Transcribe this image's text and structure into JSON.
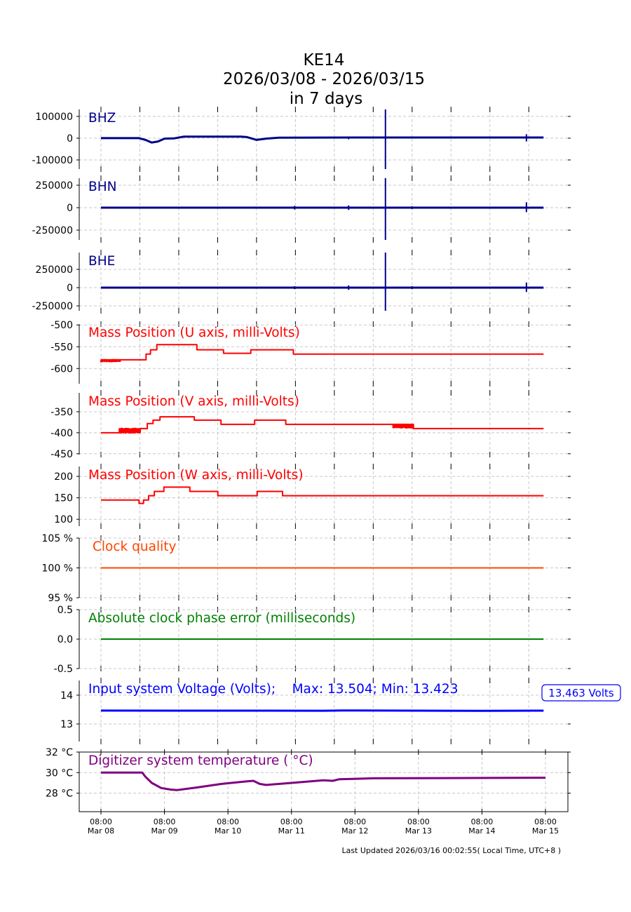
{
  "chart_data": {
    "type": "line",
    "title": [
      "KE14",
      "2026/03/08 - 2026/03/15",
      "in 7 days"
    ],
    "footer": "Last Updated 2026/03/16 00:02:55( Local Time, UTC+8 )",
    "x_unit": "days since Mar 08 08:00",
    "x_ticks": [
      {
        "t": 0,
        "time": "08:00",
        "date": "Mar 08"
      },
      {
        "t": 1,
        "time": "08:00",
        "date": "Mar 09"
      },
      {
        "t": 2,
        "time": "08:00",
        "date": "Mar 10"
      },
      {
        "t": 3,
        "time": "08:00",
        "date": "Mar 11"
      },
      {
        "t": 4,
        "time": "08:00",
        "date": "Mar 12"
      },
      {
        "t": 5,
        "time": "08:00",
        "date": "Mar 13"
      },
      {
        "t": 6,
        "time": "08:00",
        "date": "Mar 14"
      },
      {
        "t": 7,
        "time": "08:00",
        "date": "Mar 15"
      }
    ],
    "upper_grid_step_days": 0.6125,
    "panels": [
      {
        "name": "BHZ",
        "label": "BHZ",
        "color": "#00008b",
        "ylim": [
          -142000,
          132000
        ],
        "yticks": [
          {
            "v": 100000,
            "l": "100000"
          },
          {
            "v": 0,
            "l": "0"
          },
          {
            "v": -100000,
            "l": "-100000"
          }
        ],
        "series": [
          [
            0,
            0
          ],
          [
            0.6,
            0
          ],
          [
            0.7,
            -8000
          ],
          [
            0.8,
            -20000
          ],
          [
            0.9,
            -15000
          ],
          [
            1.0,
            -2000
          ],
          [
            1.15,
            -1000
          ],
          [
            1.3,
            7000
          ],
          [
            2.2,
            7000
          ],
          [
            2.3,
            5000
          ],
          [
            2.45,
            -8000
          ],
          [
            2.6,
            -2000
          ],
          [
            2.8,
            2000
          ],
          [
            4.0,
            3000
          ],
          [
            6.97,
            3000
          ]
        ],
        "spikes": [
          [
            4.48,
            -142000,
            132000
          ],
          [
            6.7,
            -15000,
            18000
          ],
          [
            3.9,
            -5000,
            5000
          ]
        ]
      },
      {
        "name": "BHN",
        "label": "BHN",
        "color": "#00008b",
        "ylim": [
          -359000,
          328000
        ],
        "yticks": [
          {
            "v": 250000,
            "l": "250000"
          },
          {
            "v": 0,
            "l": "0"
          },
          {
            "v": -250000,
            "l": "-250000"
          }
        ],
        "series": [
          [
            0,
            0
          ],
          [
            6.97,
            0
          ]
        ],
        "spikes": [
          [
            4.48,
            -359000,
            328000
          ],
          [
            6.7,
            -50000,
            60000
          ],
          [
            3.9,
            -25000,
            25000
          ],
          [
            3.05,
            -20000,
            20000
          ],
          [
            4.9,
            -15000,
            15000
          ]
        ]
      },
      {
        "name": "BHE",
        "label": "BHE",
        "color": "#00008b",
        "ylim": [
          -317000,
          480000
        ],
        "yticks": [
          {
            "v": 250000,
            "l": "250000"
          },
          {
            "v": 0,
            "l": "0"
          },
          {
            "v": -250000,
            "l": "-250000"
          }
        ],
        "series": [
          [
            0,
            0
          ],
          [
            6.97,
            0
          ]
        ],
        "spikes": [
          [
            4.48,
            -317000,
            480000
          ],
          [
            6.7,
            -60000,
            70000
          ],
          [
            3.9,
            -30000,
            30000
          ],
          [
            3.05,
            -20000,
            20000
          ],
          [
            4.9,
            -20000,
            20000
          ]
        ]
      },
      {
        "name": "mass-u",
        "label": "Mass Position (U axis, milli-Volts)",
        "color": "#ff0000",
        "ylim": [
          -635,
          -498
        ],
        "yticks": [
          {
            "v": -500,
            "l": "-500"
          },
          {
            "v": -550,
            "l": "-550"
          },
          {
            "v": -600,
            "l": "-600"
          }
        ],
        "series": [
          [
            0,
            -580
          ],
          [
            0.71,
            -580
          ],
          [
            0.71,
            -567
          ],
          [
            0.78,
            -567
          ],
          [
            0.78,
            -557
          ],
          [
            0.88,
            -557
          ],
          [
            0.88,
            -545
          ],
          [
            1.51,
            -545
          ],
          [
            1.51,
            -557
          ],
          [
            1.93,
            -557
          ],
          [
            1.93,
            -565
          ],
          [
            2.36,
            -565
          ],
          [
            2.36,
            -557
          ],
          [
            3.03,
            -557
          ],
          [
            3.03,
            -567
          ],
          [
            6.97,
            -567
          ]
        ],
        "noise": [
          [
            0,
            0.31,
            -586,
            -578
          ]
        ]
      },
      {
        "name": "mass-v",
        "label": "Mass Position (V axis, milli-Volts)",
        "color": "#ff0000",
        "ylim": [
          -452,
          -305
        ],
        "yticks": [
          {
            "v": -350,
            "l": "-350"
          },
          {
            "v": -400,
            "l": "-400"
          },
          {
            "v": -450,
            "l": "-450"
          }
        ],
        "series": [
          [
            0,
            -400
          ],
          [
            0.29,
            -400
          ],
          [
            0.29,
            -393
          ],
          [
            0.62,
            -393
          ],
          [
            0.62,
            -390
          ],
          [
            0.73,
            -390
          ],
          [
            0.73,
            -378
          ],
          [
            0.82,
            -378
          ],
          [
            0.82,
            -370
          ],
          [
            0.93,
            -370
          ],
          [
            0.93,
            -362
          ],
          [
            1.47,
            -362
          ],
          [
            1.47,
            -370
          ],
          [
            1.89,
            -370
          ],
          [
            1.89,
            -380
          ],
          [
            2.42,
            -380
          ],
          [
            2.42,
            -370
          ],
          [
            2.91,
            -370
          ],
          [
            2.91,
            -380
          ],
          [
            4.92,
            -380
          ],
          [
            4.92,
            -390
          ],
          [
            6.97,
            -390
          ]
        ],
        "noise": [
          [
            0.29,
            0.62,
            -402,
            -388
          ],
          [
            4.6,
            4.92,
            -390,
            -380
          ]
        ]
      },
      {
        "name": "mass-w",
        "label": "Mass Position (W axis, milli-Volts)",
        "color": "#ff0000",
        "ylim": [
          84,
          223
        ],
        "yticks": [
          {
            "v": 200,
            "l": "200"
          },
          {
            "v": 150,
            "l": "150"
          },
          {
            "v": 100,
            "l": "100"
          }
        ],
        "series": [
          [
            0,
            145
          ],
          [
            0.6,
            145
          ],
          [
            0.6,
            137
          ],
          [
            0.67,
            137
          ],
          [
            0.67,
            145
          ],
          [
            0.75,
            145
          ],
          [
            0.75,
            155
          ],
          [
            0.84,
            155
          ],
          [
            0.84,
            165
          ],
          [
            0.99,
            165
          ],
          [
            0.99,
            175
          ],
          [
            1.4,
            175
          ],
          [
            1.4,
            165
          ],
          [
            1.84,
            165
          ],
          [
            1.84,
            155
          ],
          [
            2.46,
            155
          ],
          [
            2.46,
            165
          ],
          [
            2.86,
            165
          ],
          [
            2.86,
            155
          ],
          [
            6.97,
            155
          ]
        ]
      },
      {
        "name": "clock-quality",
        "label": "Clock quality",
        "color": "#ff4500",
        "ylim": [
          95,
          105
        ],
        "yticks": [
          {
            "v": 105,
            "l": "105 %"
          },
          {
            "v": 100,
            "l": "100 %"
          },
          {
            "v": 95,
            "l": "95 %"
          }
        ],
        "series": [
          [
            0,
            100
          ],
          [
            6.97,
            100
          ]
        ]
      },
      {
        "name": "clock-phase",
        "label": "Absolute clock phase error (milliseconds)",
        "color": "#008000",
        "ylim": [
          -0.5,
          0.5
        ],
        "yticks": [
          {
            "v": 0.5,
            "l": "0.5"
          },
          {
            "v": 0,
            "l": "0.0"
          },
          {
            "v": -0.5,
            "l": "-0.5"
          }
        ],
        "series": [
          [
            0,
            0
          ],
          [
            6.97,
            0
          ]
        ]
      },
      {
        "name": "voltage",
        "label": "Input system Voltage (Volts);    Max: 13.504; Min: 13.423",
        "color": "#0000ff",
        "ylim": [
          12.39,
          14.51
        ],
        "yticks": [
          {
            "v": 14,
            "l": "14"
          },
          {
            "v": 13,
            "l": "13"
          }
        ],
        "series": [
          [
            0,
            13.465
          ],
          [
            2,
            13.462
          ],
          [
            3.5,
            13.46
          ],
          [
            3.8,
            13.47
          ],
          [
            5,
            13.462
          ],
          [
            6,
            13.458
          ],
          [
            6.97,
            13.463
          ]
        ],
        "current_value": "13.463 Volts"
      },
      {
        "name": "temperature",
        "label": "Digitizer system temperature ( °C)",
        "color": "#800080",
        "ylim": [
          26.2,
          32
        ],
        "yticks": [
          {
            "v": 32,
            "l": "32 °C"
          },
          {
            "v": 30,
            "l": "30 °C"
          },
          {
            "v": 28,
            "l": "28 °C"
          }
        ],
        "series": [
          [
            0,
            30
          ],
          [
            0.65,
            30
          ],
          [
            0.7,
            29.6
          ],
          [
            0.8,
            29.0
          ],
          [
            0.95,
            28.5
          ],
          [
            1.1,
            28.35
          ],
          [
            1.2,
            28.3
          ],
          [
            1.5,
            28.55
          ],
          [
            1.9,
            28.9
          ],
          [
            2.3,
            29.15
          ],
          [
            2.4,
            29.2
          ],
          [
            2.5,
            28.9
          ],
          [
            2.6,
            28.8
          ],
          [
            3.0,
            29.0
          ],
          [
            3.5,
            29.25
          ],
          [
            3.65,
            29.2
          ],
          [
            3.75,
            29.35
          ],
          [
            4.3,
            29.45
          ],
          [
            7.0,
            29.5
          ]
        ]
      }
    ]
  }
}
